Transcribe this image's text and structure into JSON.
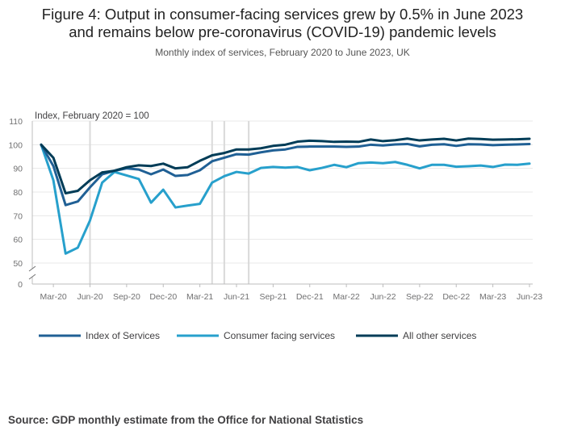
{
  "title_line1": "Figure 4: Output in consumer-facing services grew by 0.5% in June 2023",
  "title_line2": "and remains below pre-coronavirus (COVID-19) pandemic levels",
  "subtitle": "Monthly index of services, February 2020 to June 2023, UK",
  "source": "Source: GDP monthly estimate from the Office for National Statistics",
  "colors": {
    "index_of_services": "#206095",
    "consumer_facing": "#27a0cc",
    "all_other": "#003c57",
    "reference_lines": "#d9d9d9",
    "axis": "#bcbcbd"
  },
  "chart_data": {
    "type": "line",
    "ylabel": "Index, February 2020 = 100",
    "ylim": [
      50,
      110
    ],
    "y_axis_break": true,
    "yticks": [
      0,
      50,
      60,
      70,
      80,
      90,
      100,
      110
    ],
    "x": [
      "Feb-20",
      "Mar-20",
      "Apr-20",
      "May-20",
      "Jun-20",
      "Jul-20",
      "Aug-20",
      "Sep-20",
      "Oct-20",
      "Nov-20",
      "Dec-20",
      "Jan-21",
      "Feb-21",
      "Mar-21",
      "Apr-21",
      "May-21",
      "Jun-21",
      "Jul-21",
      "Aug-21",
      "Sep-21",
      "Oct-21",
      "Nov-21",
      "Dec-21",
      "Jan-22",
      "Feb-22",
      "Mar-22",
      "Apr-22",
      "May-22",
      "Jun-22",
      "Jul-22",
      "Aug-22",
      "Sep-22",
      "Oct-22",
      "Nov-22",
      "Dec-22",
      "Jan-23",
      "Feb-23",
      "Mar-23",
      "Apr-23",
      "May-23",
      "Jun-23"
    ],
    "xtick_labels": [
      "Mar-20",
      "Jun-20",
      "Sep-20",
      "Dec-20",
      "Mar-21",
      "Jun-21",
      "Sep-21",
      "Dec-21",
      "Mar-22",
      "Jun-22",
      "Sep-22",
      "Dec-22",
      "Mar-23",
      "Jun-23"
    ],
    "reference_lines_x": [
      "Jun-20",
      "Apr-21",
      "May-21",
      "Jul-21"
    ],
    "grid": true,
    "legend_position": "bottom",
    "series": [
      {
        "name": "Index of Services",
        "color_key": "index_of_services",
        "values": [
          100,
          91,
          74.5,
          76,
          82,
          87.5,
          89,
          90,
          89.5,
          87.5,
          89.5,
          86.8,
          87.2,
          89.2,
          93,
          94.5,
          96,
          95.8,
          96.8,
          97.6,
          98,
          99.1,
          99.2,
          99.2,
          99.2,
          99.1,
          99.2,
          100,
          99.7,
          100.1,
          100.3,
          99.3,
          100,
          100.2,
          99.5,
          100.2,
          100.1,
          99.8,
          100,
          100.1,
          100.3
        ]
      },
      {
        "name": "Consumer facing services",
        "color_key": "consumer_facing",
        "values": [
          100,
          85,
          54,
          56.5,
          68,
          84,
          88.5,
          87,
          85.5,
          75.5,
          81,
          73.5,
          74.3,
          75,
          84,
          86.7,
          88.5,
          87.8,
          90.2,
          90.6,
          90.3,
          90.6,
          89.2,
          90.2,
          91.5,
          90.5,
          92.2,
          92.5,
          92.2,
          92.7,
          91.5,
          90,
          91.5,
          91.5,
          90.7,
          90.9,
          91.2,
          90.6,
          91.6,
          91.5,
          92
        ]
      },
      {
        "name": "All other services",
        "color_key": "all_other",
        "values": [
          100,
          94.5,
          79.5,
          80.5,
          85,
          88.3,
          89,
          90.5,
          91.3,
          91,
          92,
          90,
          90.5,
          93.2,
          95.5,
          96.5,
          98,
          98,
          98.5,
          99.5,
          100,
          101.3,
          101.7,
          101.5,
          101.2,
          101.3,
          101.2,
          102.2,
          101.5,
          101.9,
          102.6,
          101.8,
          102.2,
          102.5,
          101.8,
          102.6,
          102.4,
          102.1,
          102.2,
          102.3,
          102.5
        ]
      }
    ]
  }
}
